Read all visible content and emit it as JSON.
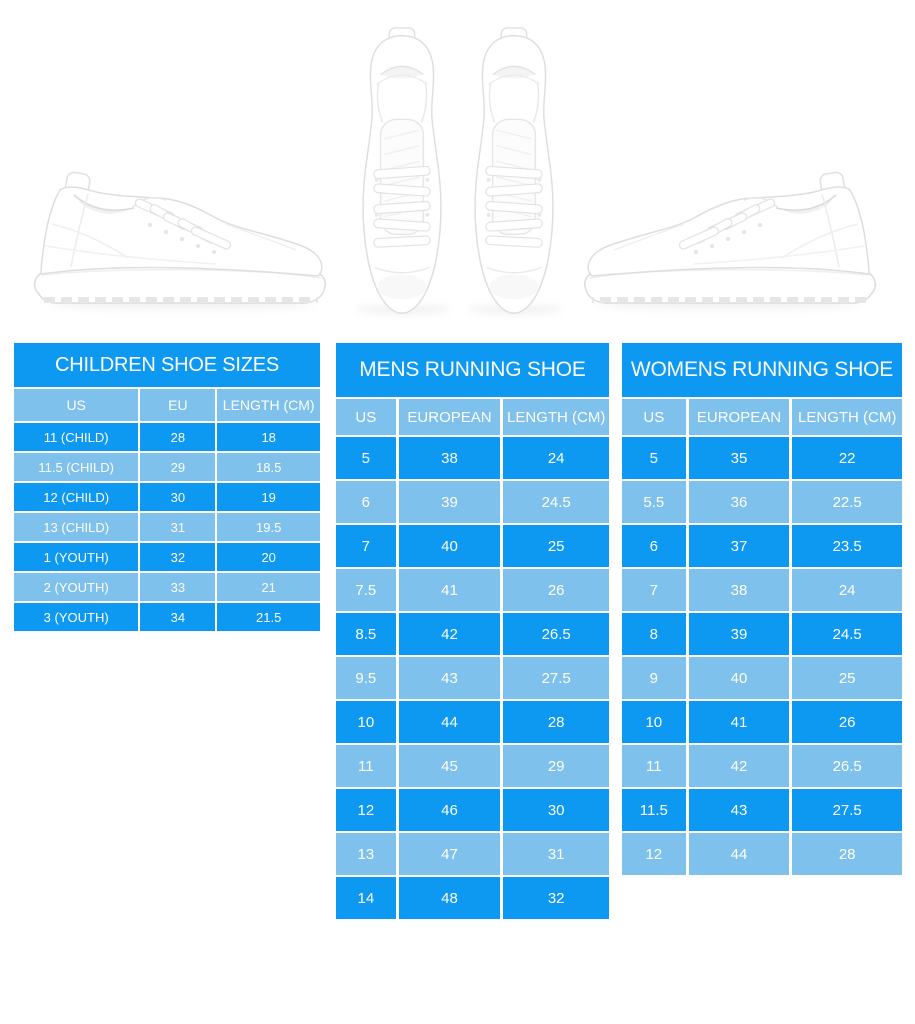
{
  "colors": {
    "row_dark_blue": "#0d98f1",
    "row_light_blue": "#7fc1ed",
    "text_white": "#ffffff",
    "background": "#ffffff"
  },
  "hero": {
    "left_photo": "white-running-shoe-side-view",
    "center_photo": "white-running-shoes-top-view-pair",
    "right_photo": "white-running-shoe-side-view-mirrored"
  },
  "chart_data": [
    {
      "type": "table",
      "title": "CHILDREN SHOE SIZES",
      "columns": [
        "US",
        "EU",
        "LENGTH (CM)"
      ],
      "rows": [
        [
          "11 (CHILD)",
          "28",
          "18"
        ],
        [
          "11.5 (CHILD)",
          "29",
          "18.5"
        ],
        [
          "12 (CHILD)",
          "30",
          "19"
        ],
        [
          "13 (CHILD)",
          "31",
          "19.5"
        ],
        [
          "1 (YOUTH)",
          "32",
          "20"
        ],
        [
          "2 (YOUTH)",
          "33",
          "21"
        ],
        [
          "3 (YOUTH)",
          "34",
          "21.5"
        ]
      ]
    },
    {
      "type": "table",
      "title": "MENS RUNNING SHOE",
      "columns": [
        "US",
        "EUROPEAN",
        "LENGTH (CM)"
      ],
      "rows": [
        [
          "5",
          "38",
          "24"
        ],
        [
          "6",
          "39",
          "24.5"
        ],
        [
          "7",
          "40",
          "25"
        ],
        [
          "7.5",
          "41",
          "26"
        ],
        [
          "8.5",
          "42",
          "26.5"
        ],
        [
          "9.5",
          "43",
          "27.5"
        ],
        [
          "10",
          "44",
          "28"
        ],
        [
          "11",
          "45",
          "29"
        ],
        [
          "12",
          "46",
          "30"
        ],
        [
          "13",
          "47",
          "31"
        ],
        [
          "14",
          "48",
          "32"
        ]
      ]
    },
    {
      "type": "table",
      "title": "WOMENS RUNNING SHOE",
      "columns": [
        "US",
        "EUROPEAN",
        "LENGTH (CM)"
      ],
      "rows": [
        [
          "5",
          "35",
          "22"
        ],
        [
          "5.5",
          "36",
          "22.5"
        ],
        [
          "6",
          "37",
          "23.5"
        ],
        [
          "7",
          "38",
          "24"
        ],
        [
          "8",
          "39",
          "24.5"
        ],
        [
          "9",
          "40",
          "25"
        ],
        [
          "10",
          "41",
          "26"
        ],
        [
          "11",
          "42",
          "26.5"
        ],
        [
          "11.5",
          "43",
          "27.5"
        ],
        [
          "12",
          "44",
          "28"
        ]
      ]
    }
  ]
}
